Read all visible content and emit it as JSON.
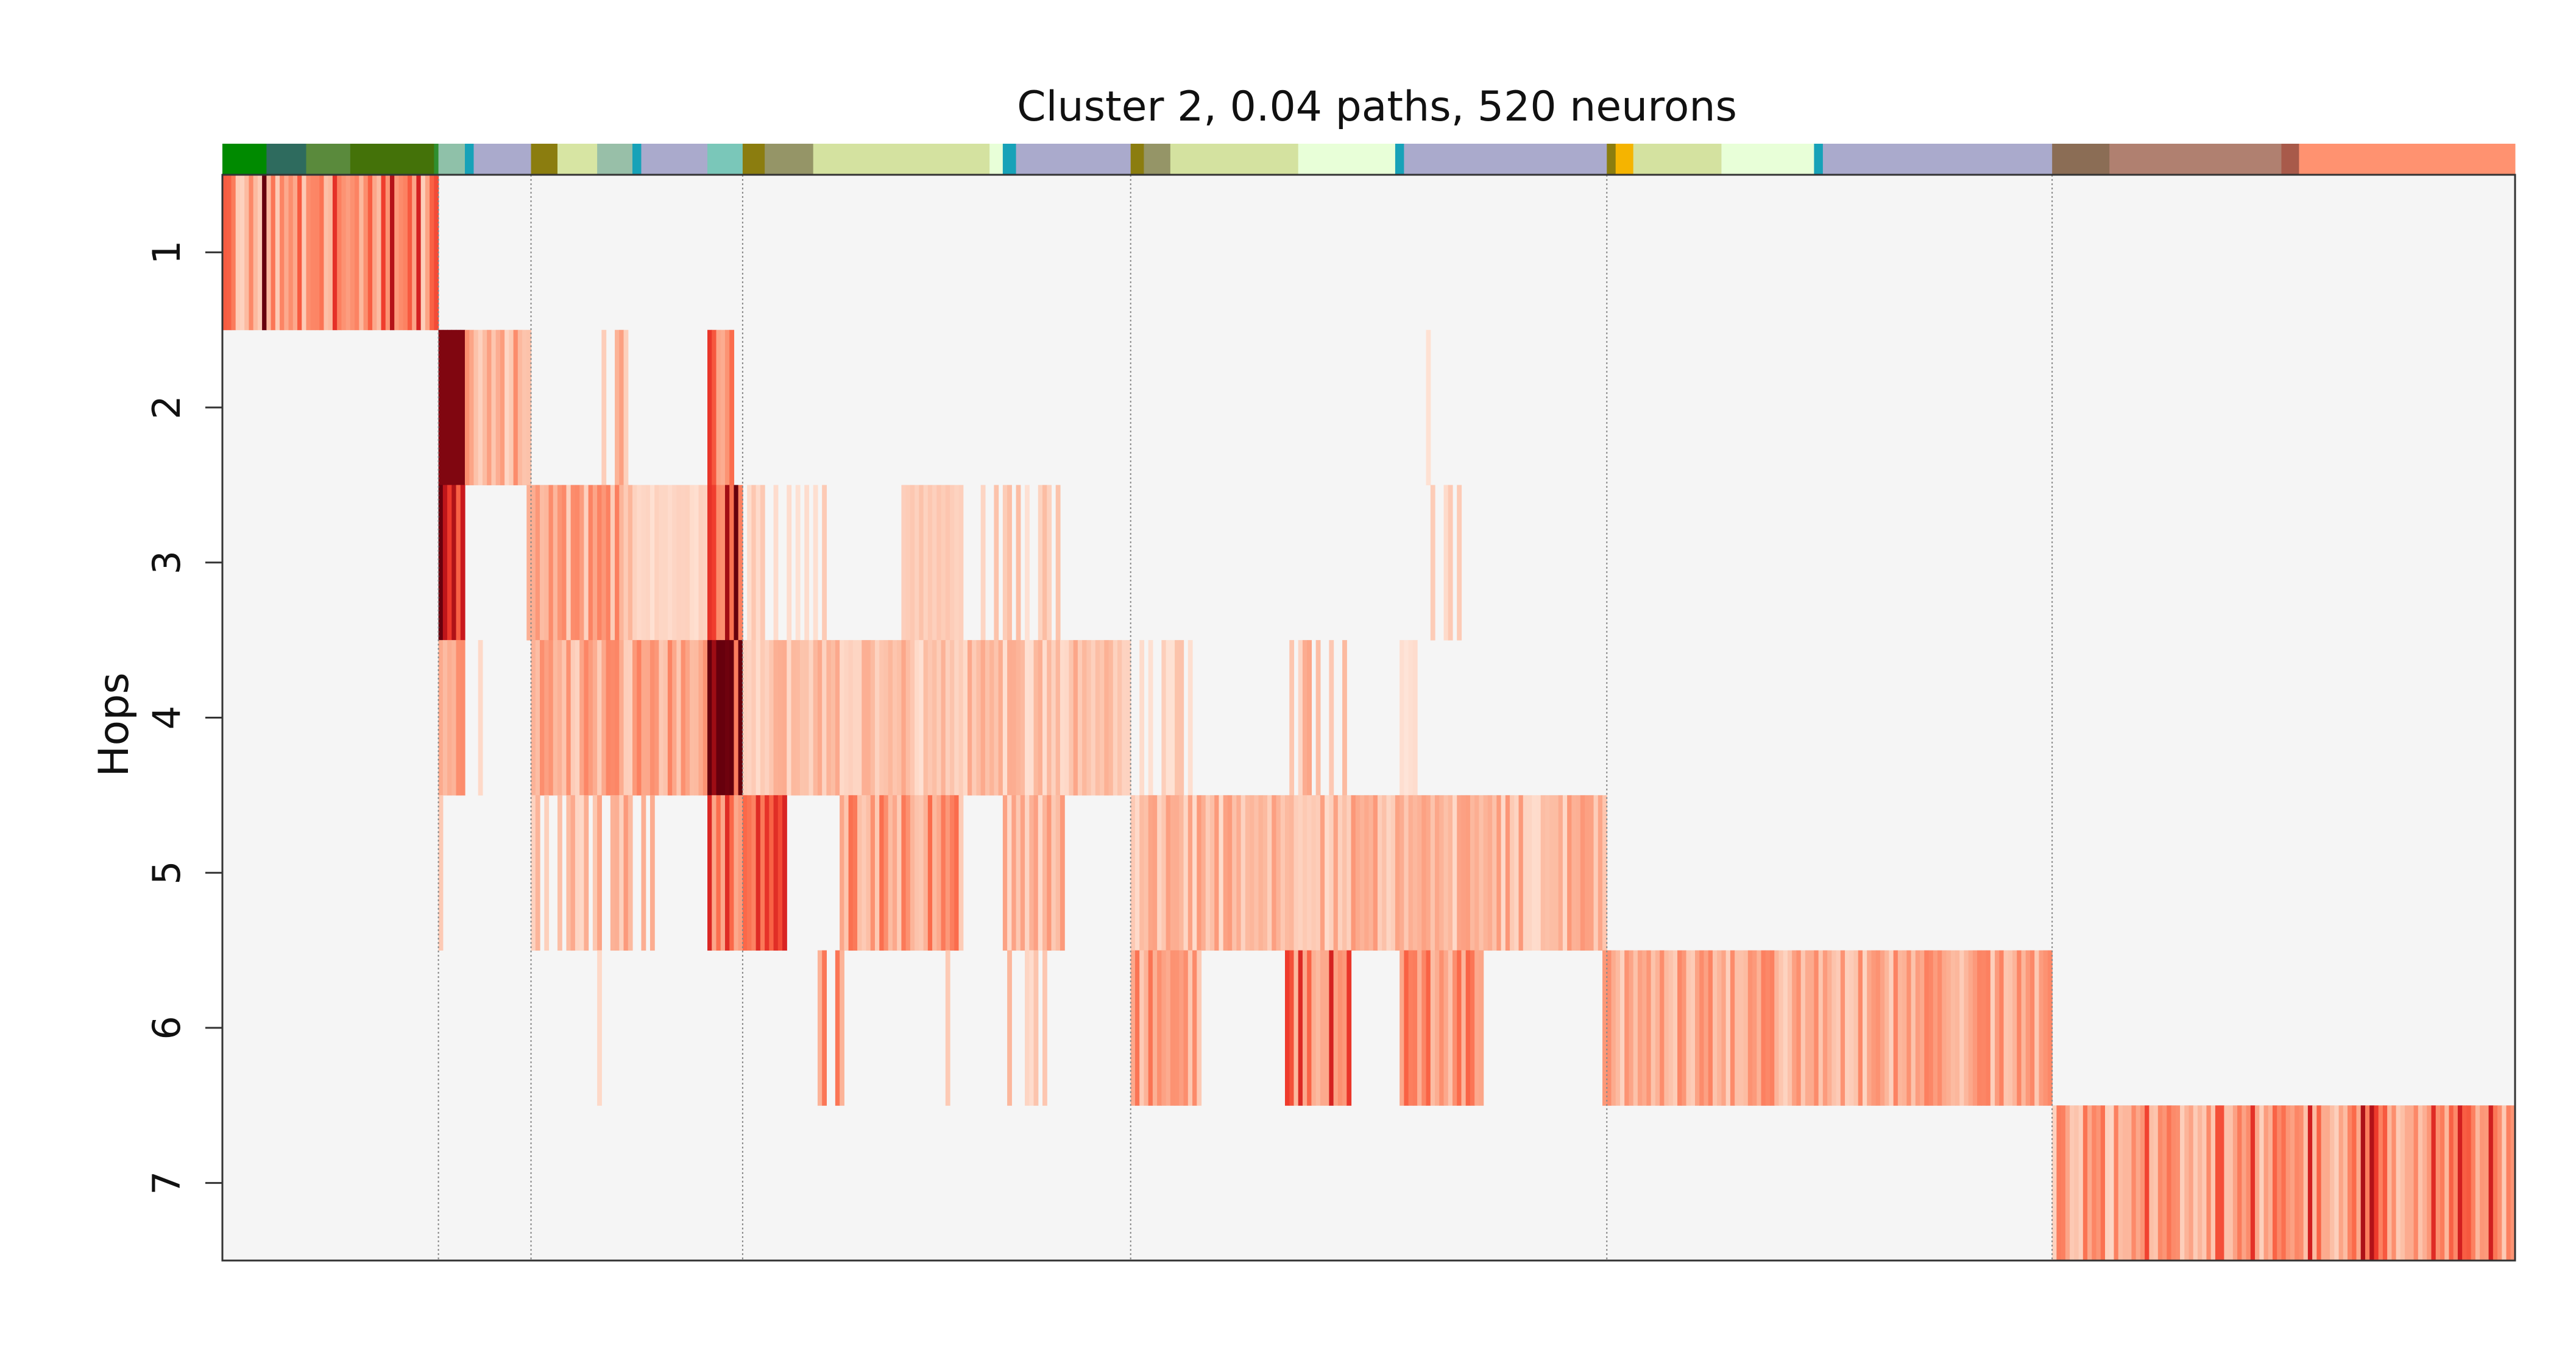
{
  "chart_data": {
    "type": "heatmap",
    "title": "Cluster 2, 0.04 paths, 520 neurons",
    "ylabel": "Hops",
    "xlabel": "",
    "y_tick_labels": [
      "1",
      "2",
      "3",
      "4",
      "5",
      "6",
      "7"
    ],
    "x_range": [
      0,
      520
    ],
    "grid": false,
    "colormap": "Reds",
    "background_color": "#f5f5f5",
    "group_boundaries": [
      49,
      70,
      118,
      206,
      314,
      415
    ],
    "top_color_bar": [
      {
        "start": 0,
        "end": 10,
        "color": "#008a00"
      },
      {
        "start": 10,
        "end": 19,
        "color": "#2e6b5e"
      },
      {
        "start": 19,
        "end": 29,
        "color": "#5a8a3c"
      },
      {
        "start": 29,
        "end": 48,
        "color": "#447209"
      },
      {
        "start": 48,
        "end": 49,
        "color": "#2f8f2f"
      },
      {
        "start": 49,
        "end": 55,
        "color": "#8fc1a9"
      },
      {
        "start": 55,
        "end": 57,
        "color": "#17a2b8"
      },
      {
        "start": 57,
        "end": 70,
        "color": "#aaaacc"
      },
      {
        "start": 70,
        "end": 76,
        "color": "#8b7d0f"
      },
      {
        "start": 76,
        "end": 85,
        "color": "#d7e5a3"
      },
      {
        "start": 85,
        "end": 93,
        "color": "#98bfa8"
      },
      {
        "start": 93,
        "end": 95,
        "color": "#17a2b8"
      },
      {
        "start": 95,
        "end": 110,
        "color": "#aaaacc"
      },
      {
        "start": 110,
        "end": 118,
        "color": "#7ac7b9"
      },
      {
        "start": 118,
        "end": 123,
        "color": "#8b7d0f"
      },
      {
        "start": 123,
        "end": 134,
        "color": "#959567"
      },
      {
        "start": 134,
        "end": 174,
        "color": "#d4e2a0"
      },
      {
        "start": 174,
        "end": 177,
        "color": "#e8ffd8"
      },
      {
        "start": 177,
        "end": 180,
        "color": "#17a2b8"
      },
      {
        "start": 180,
        "end": 206,
        "color": "#aaaacc"
      },
      {
        "start": 206,
        "end": 209,
        "color": "#8b7d0f"
      },
      {
        "start": 209,
        "end": 215,
        "color": "#959567"
      },
      {
        "start": 215,
        "end": 244,
        "color": "#d4e2a0"
      },
      {
        "start": 244,
        "end": 266,
        "color": "#e8ffd8"
      },
      {
        "start": 266,
        "end": 268,
        "color": "#17a2b8"
      },
      {
        "start": 268,
        "end": 314,
        "color": "#aaaacc"
      },
      {
        "start": 314,
        "end": 316,
        "color": "#8b7d0f"
      },
      {
        "start": 316,
        "end": 320,
        "color": "#f5b400"
      },
      {
        "start": 320,
        "end": 340,
        "color": "#d4e2a0"
      },
      {
        "start": 340,
        "end": 361,
        "color": "#e8ffd8"
      },
      {
        "start": 361,
        "end": 363,
        "color": "#17a2b8"
      },
      {
        "start": 363,
        "end": 415,
        "color": "#aaaacc"
      },
      {
        "start": 415,
        "end": 428,
        "color": "#8b6d55"
      },
      {
        "start": 428,
        "end": 467,
        "color": "#b08070"
      },
      {
        "start": 467,
        "end": 471,
        "color": "#a85a4a"
      },
      {
        "start": 471,
        "end": 520,
        "color": "#ff9270"
      }
    ],
    "rows": [
      {
        "hop": 1,
        "segments": [
          {
            "start": 0,
            "end": 49,
            "level": 0.35,
            "pattern": "dense-strong",
            "seed": 11
          }
        ]
      },
      {
        "hop": 2,
        "segments": [
          {
            "start": 49,
            "end": 55,
            "level": 0.95,
            "pattern": "solid",
            "seed": 21
          },
          {
            "start": 55,
            "end": 70,
            "level": 0.28,
            "pattern": "dense",
            "seed": 22
          },
          {
            "start": 85,
            "end": 95,
            "level": 0.25,
            "pattern": "sparse",
            "seed": 23
          },
          {
            "start": 110,
            "end": 116,
            "level": 0.5,
            "pattern": "dense",
            "seed": 24
          },
          {
            "start": 273,
            "end": 274,
            "level": 0.12,
            "pattern": "solid",
            "seed": 25
          }
        ]
      },
      {
        "hop": 3,
        "segments": [
          {
            "start": 49,
            "end": 55,
            "level": 0.8,
            "pattern": "dense",
            "seed": 31
          },
          {
            "start": 69,
            "end": 93,
            "level": 0.3,
            "pattern": "dense",
            "seed": 32
          },
          {
            "start": 93,
            "end": 110,
            "level": 0.15,
            "pattern": "flat",
            "seed": 33
          },
          {
            "start": 110,
            "end": 118,
            "level": 0.75,
            "pattern": "dense-strong",
            "seed": 34
          },
          {
            "start": 119,
            "end": 137,
            "level": 0.15,
            "pattern": "sparse",
            "seed": 35
          },
          {
            "start": 154,
            "end": 168,
            "level": 0.2,
            "pattern": "flat",
            "seed": 36
          },
          {
            "start": 172,
            "end": 190,
            "level": 0.18,
            "pattern": "sparse",
            "seed": 37
          },
          {
            "start": 271,
            "end": 282,
            "level": 0.15,
            "pattern": "sparse",
            "seed": 38
          }
        ]
      },
      {
        "hop": 4,
        "segments": [
          {
            "start": 49,
            "end": 55,
            "level": 0.3,
            "pattern": "dense",
            "seed": 41
          },
          {
            "start": 58,
            "end": 59,
            "level": 0.15,
            "pattern": "solid",
            "seed": 42
          },
          {
            "start": 70,
            "end": 110,
            "level": 0.3,
            "pattern": "dense",
            "seed": 43
          },
          {
            "start": 110,
            "end": 118,
            "level": 0.85,
            "pattern": "dense-strong",
            "seed": 44
          },
          {
            "start": 118,
            "end": 206,
            "level": 0.22,
            "pattern": "dense",
            "seed": 45
          },
          {
            "start": 208,
            "end": 220,
            "level": 0.18,
            "pattern": "sparse",
            "seed": 46
          },
          {
            "start": 240,
            "end": 256,
            "level": 0.25,
            "pattern": "sparse",
            "seed": 47
          },
          {
            "start": 267,
            "end": 271,
            "level": 0.12,
            "pattern": "flat",
            "seed": 48
          }
        ]
      },
      {
        "hop": 5,
        "segments": [
          {
            "start": 49,
            "end": 50,
            "level": 0.2,
            "pattern": "solid",
            "seed": 51
          },
          {
            "start": 70,
            "end": 98,
            "level": 0.25,
            "pattern": "sparse",
            "seed": 52
          },
          {
            "start": 110,
            "end": 128,
            "level": 0.5,
            "pattern": "dense",
            "seed": 53
          },
          {
            "start": 140,
            "end": 168,
            "level": 0.35,
            "pattern": "dense",
            "seed": 54
          },
          {
            "start": 177,
            "end": 191,
            "level": 0.25,
            "pattern": "dense",
            "seed": 55
          },
          {
            "start": 206,
            "end": 314,
            "level": 0.25,
            "pattern": "dense",
            "seed": 56
          }
        ]
      },
      {
        "hop": 6,
        "segments": [
          {
            "start": 85,
            "end": 86,
            "level": 0.15,
            "pattern": "solid",
            "seed": 61
          },
          {
            "start": 134,
            "end": 141,
            "level": 0.35,
            "pattern": "sparse",
            "seed": 62
          },
          {
            "start": 164,
            "end": 165,
            "level": 0.2,
            "pattern": "solid",
            "seed": 63
          },
          {
            "start": 178,
            "end": 188,
            "level": 0.2,
            "pattern": "sparse",
            "seed": 64
          },
          {
            "start": 206,
            "end": 222,
            "level": 0.35,
            "pattern": "dense",
            "seed": 65
          },
          {
            "start": 241,
            "end": 256,
            "level": 0.45,
            "pattern": "dense-strong",
            "seed": 66
          },
          {
            "start": 267,
            "end": 286,
            "level": 0.4,
            "pattern": "dense",
            "seed": 67
          },
          {
            "start": 313,
            "end": 415,
            "level": 0.3,
            "pattern": "dense",
            "seed": 68
          }
        ]
      },
      {
        "hop": 7,
        "segments": [
          {
            "start": 415,
            "end": 520,
            "level": 0.3,
            "pattern": "dense-strong",
            "seed": 71
          }
        ]
      }
    ]
  }
}
